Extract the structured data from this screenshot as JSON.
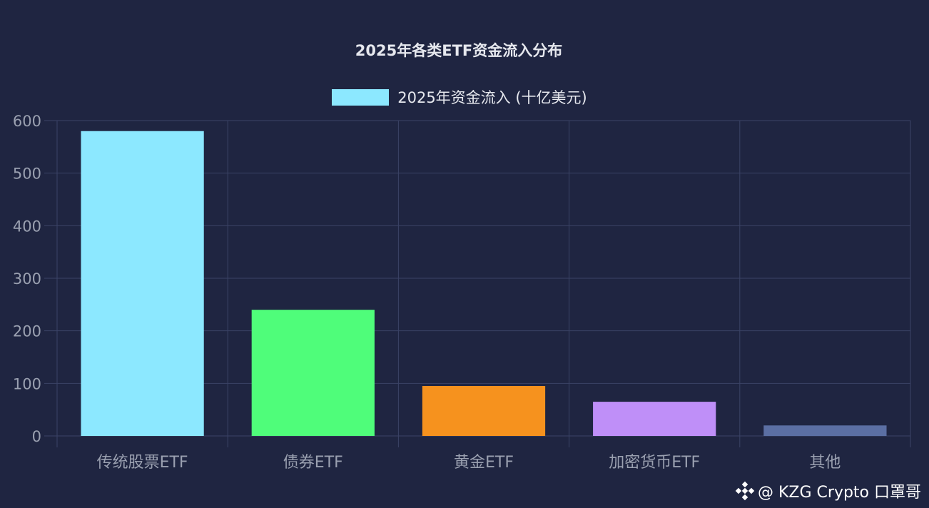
{
  "chart_data": {
    "type": "bar",
    "title": "2025年各类ETF资金流入分布",
    "categories": [
      "传统股票ETF",
      "债券ETF",
      "黄金ETF",
      "加密货币ETF",
      "其他"
    ],
    "series": [
      {
        "name": "2025年资金流入 (十亿美元)",
        "values": [
          580,
          240,
          95,
          65,
          20
        ],
        "colors": [
          "#8ce8ff",
          "#4ffd7a",
          "#f6921e",
          "#bf8ff8",
          "#5b6fa3"
        ]
      }
    ],
    "xlabel": "",
    "ylabel": "",
    "ylim": [
      0,
      600
    ],
    "yticks": [
      0,
      100,
      200,
      300,
      400,
      500,
      600
    ],
    "legend_color": "#8ce8ff",
    "grid": true,
    "legend_position": "top"
  },
  "watermark": {
    "text": "@ KZG Crypto 口罩哥",
    "icon": "binance-logo-icon"
  }
}
